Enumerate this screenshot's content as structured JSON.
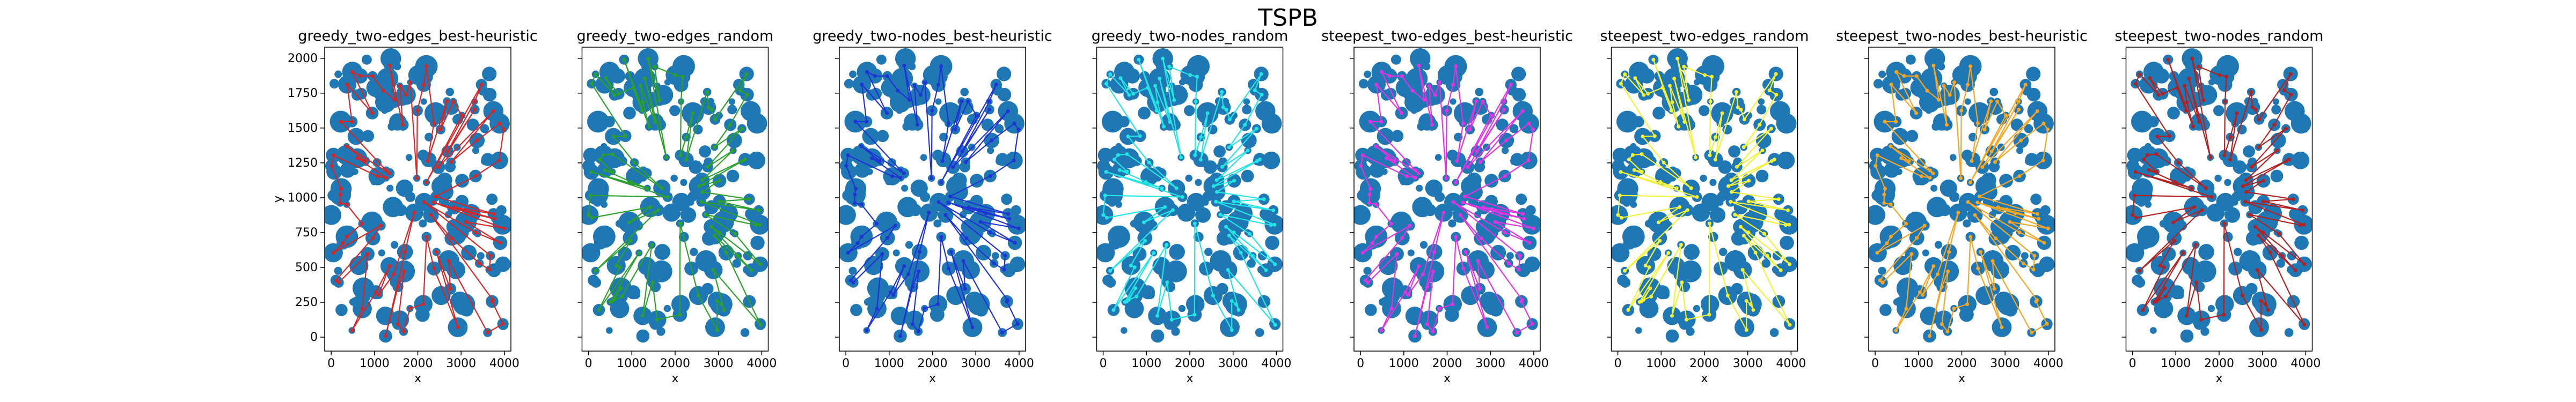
{
  "figure": {
    "suptitle": "TSPB",
    "point_color": "#1f77b4",
    "xlabel": "x",
    "ylabel": "y",
    "xticks": [
      0,
      1000,
      2000,
      3000,
      4000
    ],
    "yticks": [
      0,
      250,
      500,
      750,
      1000,
      1250,
      1500,
      1750,
      2000
    ],
    "xlim": [
      -150,
      4150
    ],
    "ylim": [
      -100,
      2080
    ]
  },
  "chart_data": [
    {
      "type": "scatter",
      "title": "greedy_two-edges_best-heuristic",
      "path_color": "#d62728"
    },
    {
      "type": "scatter",
      "title": "greedy_two-edges_random",
      "path_color": "#2ca02c"
    },
    {
      "type": "scatter",
      "title": "greedy_two-nodes_best-heuristic",
      "path_color": "#1f33d6"
    },
    {
      "type": "scatter",
      "title": "greedy_two-nodes_random",
      "path_color": "#22e5e5"
    },
    {
      "type": "scatter",
      "title": "steepest_two-edges_best-heuristic",
      "path_color": "#e233e2"
    },
    {
      "type": "scatter",
      "title": "steepest_two-edges_random",
      "path_color": "#f2f23a"
    },
    {
      "type": "scatter",
      "title": "steepest_two-nodes_best-heuristic",
      "path_color": "#f5a623"
    },
    {
      "type": "scatter",
      "title": "steepest_two-nodes_random",
      "path_color": "#b22222"
    }
  ]
}
